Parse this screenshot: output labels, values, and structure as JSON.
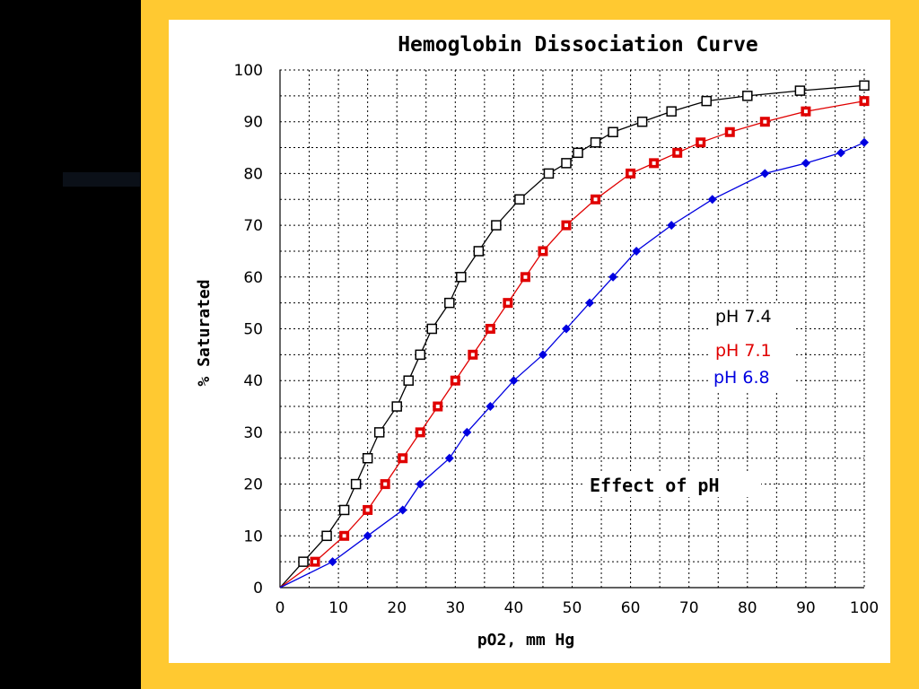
{
  "chart_data": {
    "type": "line",
    "title": "Hemoglobin Dissociation Curve",
    "xlabel": "pO2, mm Hg",
    "ylabel": "% Saturated",
    "xlim": [
      0,
      100
    ],
    "ylim": [
      0,
      100
    ],
    "x_ticks": [
      "0",
      "10",
      "20",
      "30",
      "40",
      "50",
      "60",
      "70",
      "80",
      "90",
      "100"
    ],
    "y_ticks": [
      "0",
      "10",
      "20",
      "30",
      "40",
      "50",
      "60",
      "70",
      "80",
      "90",
      "100"
    ],
    "grid": true,
    "legend_placement": "right",
    "annotation": "Effect of pH",
    "series": [
      {
        "name": "pH 7.4",
        "color": "#000000",
        "marker": "hollow-square",
        "points": [
          [
            0,
            0
          ],
          [
            4,
            5
          ],
          [
            8,
            10
          ],
          [
            11,
            15
          ],
          [
            13,
            20
          ],
          [
            15,
            25
          ],
          [
            17,
            30
          ],
          [
            20,
            35
          ],
          [
            22,
            40
          ],
          [
            24,
            45
          ],
          [
            26,
            50
          ],
          [
            29,
            55
          ],
          [
            31,
            60
          ],
          [
            34,
            65
          ],
          [
            37,
            70
          ],
          [
            41,
            75
          ],
          [
            46,
            80
          ],
          [
            49,
            82
          ],
          [
            51,
            84
          ],
          [
            54,
            86
          ],
          [
            57,
            88
          ],
          [
            62,
            90
          ],
          [
            67,
            92
          ],
          [
            73,
            94
          ],
          [
            80,
            95
          ],
          [
            89,
            96
          ],
          [
            100,
            97
          ]
        ]
      },
      {
        "name": "pH 7.1",
        "color": "#e00000",
        "marker": "filled-square",
        "points": [
          [
            0,
            0
          ],
          [
            6,
            5
          ],
          [
            11,
            10
          ],
          [
            15,
            15
          ],
          [
            18,
            20
          ],
          [
            21,
            25
          ],
          [
            24,
            30
          ],
          [
            27,
            35
          ],
          [
            30,
            40
          ],
          [
            33,
            45
          ],
          [
            36,
            50
          ],
          [
            39,
            55
          ],
          [
            42,
            60
          ],
          [
            45,
            65
          ],
          [
            49,
            70
          ],
          [
            54,
            75
          ],
          [
            60,
            80
          ],
          [
            64,
            82
          ],
          [
            68,
            84
          ],
          [
            72,
            86
          ],
          [
            77,
            88
          ],
          [
            83,
            90
          ],
          [
            90,
            92
          ],
          [
            100,
            94
          ]
        ]
      },
      {
        "name": "pH 6.8",
        "color": "#0000e0",
        "marker": "filled-diamond",
        "points": [
          [
            0,
            0
          ],
          [
            9,
            5
          ],
          [
            15,
            10
          ],
          [
            21,
            15
          ],
          [
            24,
            20
          ],
          [
            29,
            25
          ],
          [
            32,
            30
          ],
          [
            36,
            35
          ],
          [
            40,
            40
          ],
          [
            45,
            45
          ],
          [
            49,
            50
          ],
          [
            53,
            55
          ],
          [
            57,
            60
          ],
          [
            61,
            65
          ],
          [
            67,
            70
          ],
          [
            74,
            75
          ],
          [
            83,
            80
          ],
          [
            90,
            82
          ],
          [
            96,
            84
          ],
          [
            100,
            86
          ]
        ]
      }
    ]
  },
  "colors": {
    "frame": "#FFC931",
    "panel": "#ffffff",
    "page": "#000000"
  }
}
